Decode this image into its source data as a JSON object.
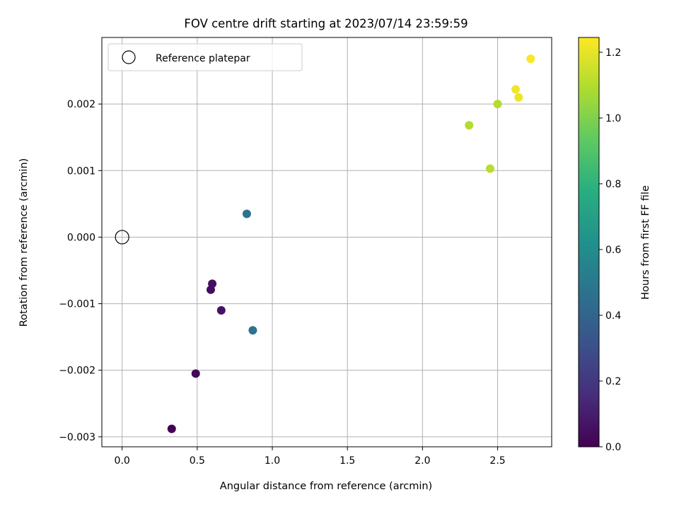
{
  "chart_data": {
    "type": "scatter",
    "title": "FOV centre drift starting at 2023/07/14 23:59:59",
    "xlabel": "Angular distance from reference (arcmin)",
    "ylabel": "Rotation from reference (arcmin)",
    "xlim": [
      -0.135,
      2.86
    ],
    "ylim": [
      -0.00315,
      0.003
    ],
    "x_ticks": [
      0.0,
      0.5,
      1.0,
      1.5,
      2.0,
      2.5
    ],
    "x_tick_labels": [
      "0.0",
      "0.5",
      "1.0",
      "1.5",
      "2.0",
      "2.5"
    ],
    "y_ticks": [
      -0.003,
      -0.002,
      -0.001,
      0.0,
      0.001,
      0.002
    ],
    "y_tick_labels": [
      "−0.003",
      "−0.002",
      "−0.001",
      "0.000",
      "0.001",
      "0.002"
    ],
    "grid": true,
    "legend": {
      "placement": "top-left",
      "entries": [
        "Reference platepar"
      ]
    },
    "reference_point": {
      "x": 0.0,
      "y": 0.0
    },
    "points": [
      {
        "x": 0.33,
        "y": -0.00288,
        "hours": 0.0
      },
      {
        "x": 0.49,
        "y": -0.00205,
        "hours": 0.02
      },
      {
        "x": 0.59,
        "y": -0.00079,
        "hours": 0.04
      },
      {
        "x": 0.6,
        "y": -0.0007,
        "hours": 0.05
      },
      {
        "x": 0.66,
        "y": -0.0011,
        "hours": 0.06
      },
      {
        "x": 0.83,
        "y": 0.00035,
        "hours": 0.47
      },
      {
        "x": 0.87,
        "y": -0.0014,
        "hours": 0.48
      },
      {
        "x": 2.31,
        "y": 0.00168,
        "hours": 1.1
      },
      {
        "x": 2.45,
        "y": 0.00103,
        "hours": 1.11
      },
      {
        "x": 2.5,
        "y": 0.002,
        "hours": 1.1
      },
      {
        "x": 2.62,
        "y": 0.00222,
        "hours": 1.22
      },
      {
        "x": 2.64,
        "y": 0.0021,
        "hours": 1.21
      },
      {
        "x": 2.72,
        "y": 0.00268,
        "hours": 1.24
      }
    ],
    "colorbar": {
      "label": "Hours from first FF file",
      "colormap": "viridis",
      "range": [
        0.0,
        1.245
      ],
      "ticks": [
        0.0,
        0.2,
        0.4,
        0.6,
        0.8,
        1.0,
        1.2
      ],
      "tick_labels": [
        "0.0",
        "0.2",
        "0.4",
        "0.6",
        "0.8",
        "1.0",
        "1.2"
      ]
    },
    "colors": {
      "grid": "#b0b0b0",
      "axes": "#000000",
      "legend_border": "#cccccc"
    }
  }
}
